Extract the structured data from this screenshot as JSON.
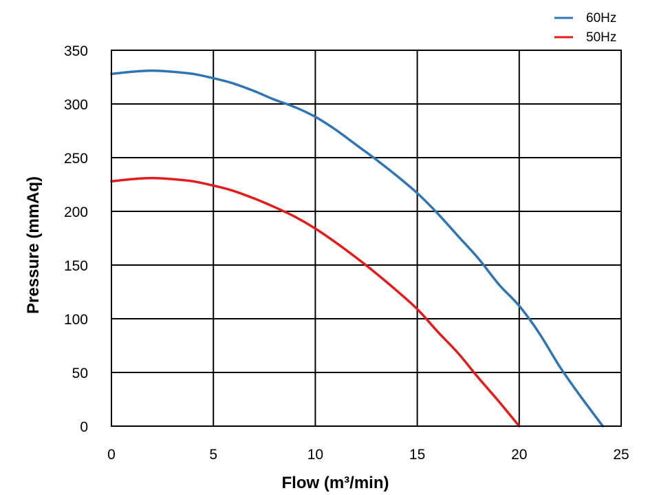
{
  "chart_data": {
    "type": "line",
    "title": "",
    "xlabel": "Flow (m³/min)",
    "ylabel": "Pressure (mmAq)",
    "xlim": [
      0,
      25
    ],
    "ylim": [
      0,
      350
    ],
    "xticks": [
      0,
      5,
      10,
      15,
      20,
      25
    ],
    "yticks": [
      0,
      50,
      100,
      150,
      200,
      250,
      300,
      350
    ],
    "xtick_labels": [
      "0",
      "5",
      "10",
      "15",
      "20",
      "25"
    ],
    "ytick_labels": [
      "0",
      "50",
      "100",
      "150",
      "200",
      "250",
      "300",
      "350"
    ],
    "grid": true,
    "legend_position": "top-right",
    "series": [
      {
        "name": "60Hz",
        "color": "#2e75b6",
        "x": [
          0,
          1,
          2,
          3,
          4,
          5,
          6,
          7,
          8,
          9,
          10,
          11,
          12,
          13,
          14,
          15,
          16,
          17,
          18,
          19,
          20,
          21,
          22,
          23,
          24.1
        ],
        "y": [
          328,
          330,
          331,
          330,
          328,
          324,
          319,
          312,
          304,
          297,
          288,
          276,
          262,
          248,
          233,
          217,
          198,
          177,
          156,
          132,
          112,
          86,
          55,
          28,
          0
        ]
      },
      {
        "name": "50Hz",
        "color": "#e51a1a",
        "x": [
          0,
          1,
          2,
          3,
          4,
          5,
          6,
          7,
          8,
          9,
          10,
          11,
          12,
          13,
          14,
          15,
          16,
          17,
          18,
          19,
          20
        ],
        "y": [
          228,
          230,
          231,
          230,
          228,
          224,
          219,
          212,
          204,
          195,
          184,
          171,
          157,
          142,
          126,
          109,
          88,
          68,
          45,
          23,
          0
        ]
      }
    ]
  }
}
